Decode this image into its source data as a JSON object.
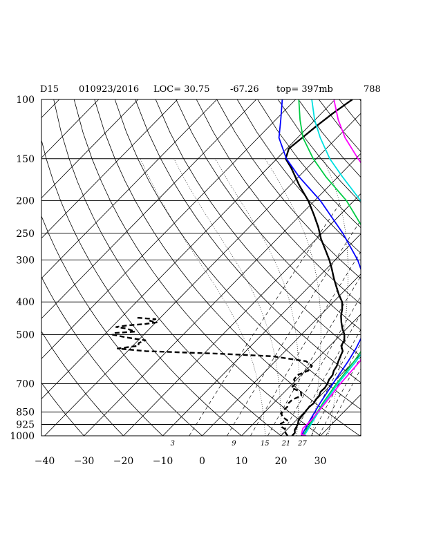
{
  "header": {
    "station": "D15",
    "datetime": "010923/2016",
    "loc": "LOC= 30.75",
    "lon": "-67.26",
    "top": "top= 397mb",
    "num": "788"
  },
  "chart_data": {
    "type": "line",
    "title": "",
    "xlabel": "",
    "ylabel": "",
    "x_scale": "temperature (skew)",
    "y_scale": "log-pressure",
    "xlim": [
      -40,
      40
    ],
    "ylim": [
      1000,
      100
    ],
    "grid": true,
    "pressure_levels": [
      100,
      150,
      200,
      250,
      300,
      400,
      500,
      700,
      850,
      925,
      1000
    ],
    "pressure_labels": [
      "100",
      "150",
      "200",
      "250",
      "300",
      "400",
      "500",
      "700",
      "850",
      "925",
      "1000"
    ],
    "temperature_ticks": [
      -40,
      -30,
      -20,
      -10,
      0,
      10,
      20,
      30
    ],
    "temperature_labels": [
      "−40",
      "−30",
      "−20",
      "−10",
      "0",
      "10",
      "20",
      "30"
    ],
    "mixing_ratio_labels": [
      "3",
      "9",
      "15",
      "21",
      "27"
    ],
    "series": [
      {
        "color": "#000000",
        "style": "solid",
        "points": [
          [
            1000,
            22.8
          ],
          [
            980,
            22.8
          ],
          [
            960,
            22
          ],
          [
            940,
            21.7
          ],
          [
            920,
            21.3
          ],
          [
            900,
            20.6
          ],
          [
            880,
            20.4
          ],
          [
            860,
            20.3
          ],
          [
            840,
            20.1
          ],
          [
            820,
            20
          ],
          [
            800,
            20.2
          ],
          [
            780,
            19.8
          ],
          [
            760,
            19.7
          ],
          [
            740,
            19.1
          ],
          [
            720,
            19.2
          ],
          [
            700,
            18.8
          ],
          [
            680,
            18.2
          ],
          [
            660,
            18
          ],
          [
            640,
            17.2
          ],
          [
            620,
            16.8
          ],
          [
            600,
            16
          ],
          [
            580,
            15.3
          ],
          [
            560,
            14.6
          ],
          [
            540,
            12.9
          ],
          [
            520,
            12.3
          ],
          [
            500,
            10.9
          ],
          [
            480,
            8.9
          ],
          [
            460,
            7.1
          ],
          [
            440,
            5.4
          ],
          [
            420,
            4
          ],
          [
            400,
            2.2
          ],
          [
            380,
            -0.5
          ],
          [
            360,
            -3.1
          ],
          [
            340,
            -5.8
          ],
          [
            320,
            -8.5
          ],
          [
            300,
            -11.5
          ],
          [
            280,
            -15
          ],
          [
            260,
            -18.8
          ],
          [
            240,
            -22.4
          ],
          [
            220,
            -26.7
          ],
          [
            200,
            -31.6
          ],
          [
            180,
            -37.7
          ],
          [
            160,
            -44
          ],
          [
            150,
            -47.8
          ],
          [
            140,
            -49.5
          ],
          [
            130,
            -48.8
          ],
          [
            120,
            -48.1
          ],
          [
            110,
            -47.1
          ],
          [
            100,
            -45.6
          ]
        ]
      },
      {
        "color": "#000000",
        "style": "dashed",
        "points": [
          [
            1000,
            21.7
          ],
          [
            980,
            20.4
          ],
          [
            960,
            19.9
          ],
          [
            940,
            17.8
          ],
          [
            920,
            16.9
          ],
          [
            900,
            17.8
          ],
          [
            880,
            15.8
          ],
          [
            860,
            14.6
          ],
          [
            840,
            14.3
          ],
          [
            820,
            14.4
          ],
          [
            800,
            13.8
          ],
          [
            780,
            13.9
          ],
          [
            760,
            15.2
          ],
          [
            740,
            14.1
          ],
          [
            720,
            10.7
          ],
          [
            700,
            10.7
          ],
          [
            680,
            9.3
          ],
          [
            660,
            9.1
          ],
          [
            640,
            10.7
          ],
          [
            620,
            10.5
          ],
          [
            600,
            7.8
          ],
          [
            580,
            -2.1
          ],
          [
            570,
            -16.3
          ],
          [
            560,
            -35.4
          ],
          [
            550,
            -43.2
          ],
          [
            540,
            -38.6
          ],
          [
            530,
            -39.2
          ],
          [
            520,
            -38.2
          ],
          [
            510,
            -43.7
          ],
          [
            500,
            -48
          ],
          [
            495,
            -48
          ],
          [
            490,
            -43
          ],
          [
            480,
            -45.8
          ],
          [
            475,
            -48.9
          ],
          [
            470,
            -46.7
          ],
          [
            465,
            -42.2
          ],
          [
            460,
            -39.8
          ],
          [
            455,
            -41.9
          ],
          [
            450,
            -40.9
          ],
          [
            445,
            -46.4
          ]
        ]
      },
      {
        "color": "#0000ff",
        "style": "solid",
        "points": [
          [
            1000,
            25.2
          ],
          [
            900,
            23.5
          ],
          [
            800,
            21.8
          ],
          [
            700,
            20.2
          ],
          [
            600,
            18.5
          ],
          [
            550,
            17.3
          ],
          [
            500,
            15.6
          ],
          [
            450,
            12.9
          ],
          [
            400,
            8.9
          ],
          [
            350,
            3.3
          ],
          [
            300,
            -4.3
          ],
          [
            250,
            -14.7
          ],
          [
            200,
            -28.5
          ],
          [
            170,
            -39.8
          ],
          [
            150,
            -47.6
          ],
          [
            130,
            -54.7
          ],
          [
            115,
            -58.7
          ],
          [
            100,
            -63.4
          ]
        ]
      },
      {
        "color": "#00cc44",
        "style": "solid",
        "points": [
          [
            1000,
            25.6
          ],
          [
            900,
            24.1
          ],
          [
            800,
            22.5
          ],
          [
            700,
            21.1
          ],
          [
            600,
            20
          ],
          [
            550,
            19.1
          ],
          [
            500,
            17.9
          ],
          [
            450,
            15.8
          ],
          [
            400,
            12.8
          ],
          [
            350,
            8
          ],
          [
            300,
            1
          ],
          [
            250,
            -8.8
          ],
          [
            200,
            -21.9
          ],
          [
            170,
            -33
          ],
          [
            150,
            -40.8
          ],
          [
            130,
            -48.6
          ],
          [
            115,
            -53.8
          ],
          [
            100,
            -59.2
          ]
        ]
      },
      {
        "color": "#00e0e0",
        "style": "solid",
        "points": [
          [
            1000,
            25.9
          ],
          [
            900,
            24.4
          ],
          [
            800,
            22.8
          ],
          [
            700,
            21.5
          ],
          [
            600,
            20.5
          ],
          [
            550,
            19.7
          ],
          [
            500,
            18.6
          ],
          [
            450,
            16.7
          ],
          [
            400,
            13.9
          ],
          [
            350,
            9.6
          ],
          [
            300,
            2.9
          ],
          [
            250,
            -6
          ],
          [
            200,
            -18.3
          ],
          [
            170,
            -28.8
          ],
          [
            150,
            -36.6
          ],
          [
            130,
            -44.2
          ],
          [
            115,
            -50.1
          ],
          [
            100,
            -55.9
          ]
        ]
      },
      {
        "color": "#ff00ff",
        "style": "solid",
        "points": [
          [
            1000,
            26.4
          ],
          [
            990,
            24.8
          ],
          [
            950,
            23.7
          ],
          [
            900,
            23.8
          ],
          [
            800,
            23.1
          ],
          [
            700,
            22.1
          ],
          [
            600,
            21.5
          ],
          [
            580,
            20.9
          ],
          [
            560,
            21.5
          ],
          [
            540,
            20.8
          ],
          [
            520,
            21.7
          ],
          [
            500,
            21.2
          ],
          [
            480,
            19.7
          ],
          [
            450,
            18.3
          ],
          [
            400,
            15.9
          ],
          [
            350,
            12.4
          ],
          [
            300,
            7.1
          ],
          [
            250,
            -0.8
          ],
          [
            200,
            -11.7
          ],
          [
            170,
            -21.5
          ],
          [
            150,
            -29.4
          ],
          [
            130,
            -37.9
          ],
          [
            115,
            -44.1
          ],
          [
            100,
            -50.3
          ]
        ]
      }
    ]
  }
}
